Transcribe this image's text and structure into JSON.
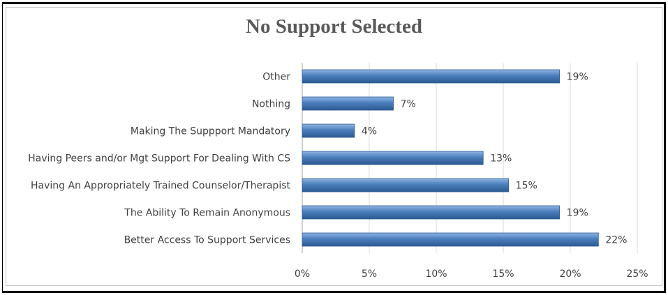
{
  "chart_data": {
    "type": "bar",
    "orientation": "horizontal",
    "title": "No Support Selected",
    "categories": [
      "Other",
      "Nothing",
      "Making The Suppport Mandatory",
      "Having Peers and/or Mgt Support For Dealing With CS",
      "Having An Appropriately Trained Counselor/Therapist",
      "The Ability To Remain Anonymous",
      "Better Access To Support Services"
    ],
    "values": [
      19.2,
      6.8,
      3.9,
      13.5,
      15.4,
      19.2,
      22.1
    ],
    "data_labels": [
      "19%",
      "7%",
      "4%",
      "13%",
      "15%",
      "19%",
      "22%"
    ],
    "x_ticks": [
      "0%",
      "5%",
      "10%",
      "15%",
      "20%",
      "25%"
    ],
    "xlim": [
      0,
      25
    ],
    "grid": "vertical",
    "legend": "none",
    "bar_color": "#4a7ebb"
  }
}
